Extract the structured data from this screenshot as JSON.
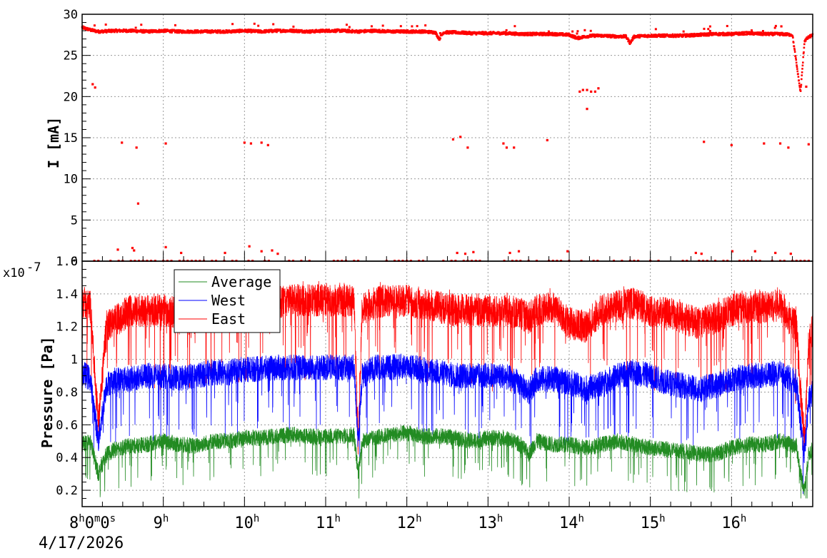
{
  "chart_data": [
    {
      "type": "scatter",
      "ylabel": "I [mA]",
      "ylim": [
        0,
        30
      ],
      "ytick_labels": [
        "0",
        "5",
        "10",
        "15",
        "20",
        "25",
        "30"
      ],
      "yticks": [
        0,
        5,
        10,
        15,
        20,
        25,
        30
      ],
      "grid": true,
      "series": [
        {
          "color": "#ff0000",
          "main_x": [
            8.0,
            8.1,
            8.2,
            8.4,
            8.6,
            8.8,
            9.0,
            9.2,
            9.4,
            9.6,
            9.8,
            10.0,
            10.2,
            10.4,
            10.6,
            10.8,
            11.0,
            11.2,
            11.4,
            11.6,
            11.8,
            12.0,
            12.2,
            12.35,
            12.4,
            12.45,
            12.6,
            12.8,
            13.0,
            13.2,
            13.4,
            13.6,
            13.8,
            14.0,
            14.1,
            14.2,
            14.3,
            14.4,
            14.6,
            14.7,
            14.75,
            14.8,
            15.0,
            15.2,
            15.4,
            15.6,
            15.8,
            16.0,
            16.2,
            16.4,
            16.6,
            16.75,
            16.8,
            16.85,
            16.9,
            16.95,
            17.0
          ],
          "main_y": [
            28.4,
            28.1,
            27.9,
            28.0,
            28.0,
            27.9,
            28.0,
            27.9,
            27.9,
            27.9,
            27.9,
            28.0,
            27.9,
            28.0,
            28.0,
            27.9,
            28.0,
            28.0,
            27.9,
            28.0,
            27.9,
            27.9,
            27.9,
            27.8,
            27.0,
            27.8,
            27.8,
            27.7,
            27.7,
            27.7,
            27.6,
            27.6,
            27.6,
            27.5,
            27.1,
            27.3,
            27.4,
            27.4,
            27.3,
            27.3,
            26.5,
            27.3,
            27.4,
            27.4,
            27.4,
            27.5,
            27.6,
            27.6,
            27.7,
            27.6,
            27.6,
            27.5,
            24.0,
            20.5,
            26.8,
            27.2,
            27.5
          ],
          "outliers_x": [
            8.13,
            8.16,
            8.49,
            8.67,
            9.03,
            10.0,
            10.08,
            10.21,
            10.29,
            12.57,
            12.66,
            12.75,
            13.19,
            13.23,
            13.32,
            13.73,
            14.13,
            14.17,
            14.22,
            14.27,
            14.32,
            14.36,
            14.22,
            15.66,
            16.0,
            16.4,
            16.6,
            16.7,
            16.92,
            16.95,
            8.69,
            8.44,
            8.64,
            8.62,
            9.03,
            9.22,
            9.76,
            10.06,
            10.21,
            10.34,
            10.41,
            12.62,
            12.72,
            12.82,
            13.27,
            13.38,
            13.98,
            15.56,
            15.63,
            16.01,
            16.29,
            16.54,
            16.73
          ],
          "outliers_y": [
            21.5,
            21.1,
            14.4,
            13.8,
            14.3,
            14.4,
            14.3,
            14.4,
            14.1,
            14.8,
            15.1,
            13.8,
            14.3,
            13.8,
            13.8,
            14.7,
            20.6,
            20.8,
            20.8,
            20.6,
            20.6,
            21.0,
            18.5,
            14.5,
            14.1,
            14.3,
            14.3,
            13.8,
            21.2,
            14.2,
            7.0,
            1.4,
            1.3,
            1.6,
            1.7,
            1.0,
            1.0,
            1.8,
            1.2,
            1.3,
            0.9,
            1.0,
            0.9,
            1.1,
            1.0,
            1.2,
            1.2,
            1.0,
            0.9,
            1.2,
            1.2,
            1.0,
            0.9
          ]
        }
      ]
    },
    {
      "type": "line",
      "ylabel": "Pressure [Pa]",
      "ylim": [
        0.1,
        1.6
      ],
      "y_multiplier_label": "x10",
      "y_multiplier_exp": "-7",
      "ytick_labels": [
        "0.2",
        "0.4",
        "0.6",
        "0.8",
        "1",
        "1.2",
        "1.4",
        "1.6"
      ],
      "yticks": [
        0.2,
        0.4,
        0.6,
        0.8,
        1.0,
        1.2,
        1.4,
        1.6
      ],
      "xlim": [
        8.0,
        17.0
      ],
      "x_tick_hours": [
        8,
        9,
        10,
        11,
        12,
        13,
        14,
        15,
        16
      ],
      "x_tick_labels": [
        "8",
        "9",
        "10",
        "11",
        "12",
        "13",
        "14",
        "15",
        "16"
      ],
      "x_first_suffix": [
        "h",
        "0",
        "m",
        "0",
        "s"
      ],
      "x_hour_suffix": "h",
      "date_label": "4/17/2026",
      "grid": true,
      "legend_position": "top-left",
      "series": [
        {
          "name": "Average",
          "color": "#228b22",
          "x": [
            8.0,
            8.1,
            8.2,
            8.3,
            8.45,
            8.6,
            8.8,
            9.0,
            9.2,
            9.4,
            9.6,
            9.8,
            10.0,
            10.2,
            10.4,
            10.6,
            10.8,
            11.0,
            11.2,
            11.35,
            11.4,
            11.45,
            11.6,
            11.8,
            12.0,
            12.2,
            12.4,
            12.6,
            12.8,
            13.0,
            13.2,
            13.4,
            13.5,
            13.6,
            13.8,
            14.0,
            14.2,
            14.4,
            14.6,
            14.8,
            15.0,
            15.2,
            15.4,
            15.6,
            15.8,
            16.0,
            16.2,
            16.4,
            16.6,
            16.8,
            16.85,
            16.9,
            16.95,
            17.0
          ],
          "y": [
            0.48,
            0.5,
            0.3,
            0.42,
            0.46,
            0.47,
            0.48,
            0.5,
            0.48,
            0.47,
            0.5,
            0.5,
            0.52,
            0.52,
            0.53,
            0.54,
            0.53,
            0.53,
            0.53,
            0.54,
            0.3,
            0.5,
            0.52,
            0.54,
            0.55,
            0.53,
            0.53,
            0.52,
            0.5,
            0.52,
            0.52,
            0.48,
            0.42,
            0.5,
            0.48,
            0.48,
            0.46,
            0.48,
            0.5,
            0.48,
            0.46,
            0.45,
            0.44,
            0.42,
            0.42,
            0.46,
            0.48,
            0.48,
            0.5,
            0.47,
            0.3,
            0.2,
            0.42,
            0.45
          ],
          "noise": 0.05
        },
        {
          "name": "West",
          "color": "#0000ff",
          "x": [
            8.0,
            8.1,
            8.2,
            8.3,
            8.45,
            8.6,
            8.8,
            9.0,
            9.2,
            9.4,
            9.6,
            9.8,
            10.0,
            10.2,
            10.4,
            10.6,
            10.8,
            11.0,
            11.2,
            11.35,
            11.4,
            11.45,
            11.6,
            11.8,
            12.0,
            12.2,
            12.4,
            12.6,
            12.8,
            13.0,
            13.2,
            13.4,
            13.5,
            13.6,
            13.8,
            14.0,
            14.2,
            14.4,
            14.6,
            14.8,
            15.0,
            15.2,
            15.4,
            15.6,
            15.8,
            16.0,
            16.2,
            16.4,
            16.6,
            16.8,
            16.85,
            16.9,
            16.95,
            17.0
          ],
          "y": [
            0.92,
            0.88,
            0.5,
            0.85,
            0.88,
            0.88,
            0.9,
            0.9,
            0.88,
            0.9,
            0.92,
            0.92,
            0.94,
            0.94,
            0.95,
            0.95,
            0.95,
            0.95,
            0.95,
            0.95,
            0.5,
            0.9,
            0.95,
            0.95,
            0.96,
            0.94,
            0.92,
            0.9,
            0.9,
            0.9,
            0.9,
            0.85,
            0.8,
            0.88,
            0.88,
            0.86,
            0.82,
            0.85,
            0.9,
            0.92,
            0.9,
            0.86,
            0.84,
            0.82,
            0.84,
            0.88,
            0.9,
            0.9,
            0.92,
            0.86,
            0.6,
            0.42,
            0.75,
            0.8
          ],
          "noise": 0.08
        },
        {
          "name": "East",
          "color": "#ff0000",
          "x": [
            8.0,
            8.1,
            8.2,
            8.3,
            8.45,
            8.6,
            8.8,
            9.0,
            9.2,
            9.4,
            9.6,
            9.8,
            10.0,
            10.2,
            10.4,
            10.6,
            10.8,
            11.0,
            11.2,
            11.35,
            11.4,
            11.45,
            11.6,
            11.8,
            12.0,
            12.2,
            12.4,
            12.6,
            12.8,
            13.0,
            13.2,
            13.4,
            13.5,
            13.6,
            13.8,
            14.0,
            14.2,
            14.4,
            14.6,
            14.8,
            15.0,
            15.2,
            15.4,
            15.6,
            15.8,
            16.0,
            16.2,
            16.4,
            16.6,
            16.8,
            16.85,
            16.9,
            16.95,
            17.0
          ],
          "y": [
            1.35,
            1.33,
            0.6,
            1.2,
            1.25,
            1.3,
            1.3,
            1.3,
            1.28,
            1.32,
            1.32,
            1.34,
            1.35,
            1.35,
            1.35,
            1.36,
            1.36,
            1.36,
            1.36,
            1.36,
            0.5,
            1.3,
            1.35,
            1.36,
            1.36,
            1.34,
            1.32,
            1.3,
            1.3,
            1.3,
            1.3,
            1.28,
            1.25,
            1.3,
            1.32,
            1.22,
            1.2,
            1.3,
            1.33,
            1.34,
            1.3,
            1.28,
            1.25,
            1.22,
            1.25,
            1.3,
            1.32,
            1.32,
            1.33,
            1.2,
            0.8,
            0.5,
            1.1,
            1.2
          ],
          "noise": 0.1
        }
      ]
    }
  ]
}
